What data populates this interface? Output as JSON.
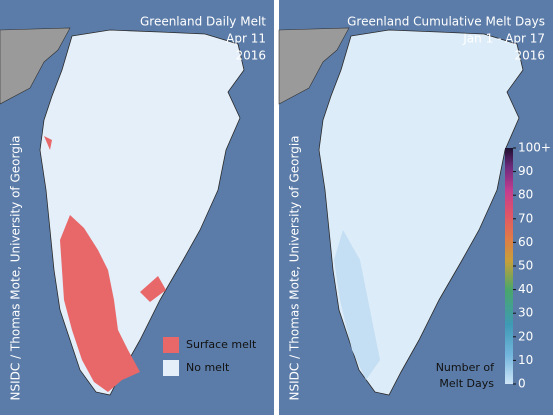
{
  "panels": [
    {
      "title": {
        "line1": "Greenland Daily Melt",
        "line2": "Apr 11",
        "line3": "2016"
      },
      "credit": "NSIDC / Thomas Mote, University of Georgia",
      "legend": {
        "items": [
          {
            "label": "Surface melt",
            "color": "#e8686a"
          },
          {
            "label": "No melt",
            "color": "#e4effa"
          }
        ]
      }
    },
    {
      "title": {
        "line1": "Greenland Cumulative Melt Days",
        "line2": "Jan 1 - Apr 17",
        "line3": "2016"
      },
      "credit": "NSIDC / Thomas Mote, University of Georgia",
      "colorbar": {
        "label": {
          "line1": "Number of",
          "line2": "Melt Days"
        },
        "range": [
          0,
          100
        ],
        "ticks": [
          0,
          10,
          20,
          30,
          40,
          50,
          60,
          70,
          80,
          90,
          {
            "value": 100,
            "label": "100+"
          }
        ]
      }
    }
  ]
}
